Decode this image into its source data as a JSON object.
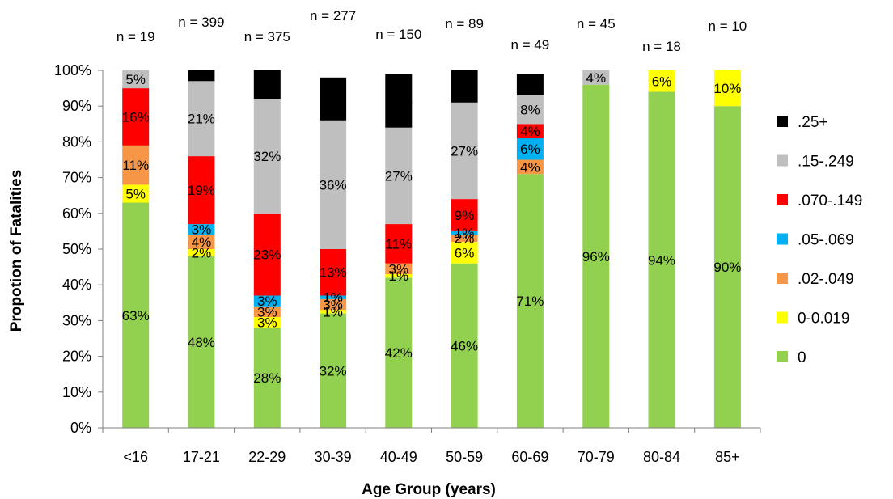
{
  "chart_data": {
    "type": "bar",
    "stacked": true,
    "title": "",
    "xlabel": "Age Group (years)",
    "ylabel": "Propotion of Fatalities",
    "ylim": [
      0,
      100
    ],
    "yticks": [
      "0%",
      "10%",
      "20%",
      "30%",
      "40%",
      "50%",
      "60%",
      "70%",
      "80%",
      "90%",
      "100%"
    ],
    "grid": false,
    "legend_position": "right",
    "categories": [
      "<16",
      "17-21",
      "22-29",
      "30-39",
      "40-49",
      "50-59",
      "60-69",
      "70-79",
      "80-84",
      "85+"
    ],
    "sample_sizes": [
      "n = 19",
      "n = 399",
      "n = 375",
      "n = 277",
      "n = 150",
      "n = 89",
      "n = 49",
      "n = 45",
      "n = 18",
      "n = 10"
    ],
    "series": [
      {
        "name": "0",
        "color": "#92D050",
        "values": [
          63,
          48,
          28,
          32,
          42,
          46,
          71,
          96,
          94,
          90
        ],
        "labels": [
          "63%",
          "48%",
          "28%",
          "32%",
          "42%",
          "46%",
          "71%",
          "96%",
          "94%",
          "90%"
        ]
      },
      {
        "name": "0-0.019",
        "color": "#FFFF00",
        "values": [
          5,
          2,
          3,
          1,
          1,
          6,
          0,
          0,
          6,
          10
        ],
        "labels": [
          "5%",
          "2%",
          "3%",
          "1%",
          "1%",
          "6%",
          "",
          "",
          "6%",
          "10%"
        ]
      },
      {
        "name": ".02-.049",
        "color": "#F79646",
        "values": [
          11,
          4,
          3,
          3,
          3,
          2,
          4,
          0,
          0,
          0
        ],
        "labels": [
          "11%",
          "4%",
          "3%",
          "3%",
          "3%",
          "2%",
          "4%",
          "",
          "",
          ""
        ]
      },
      {
        "name": ".05-.069",
        "color": "#00B0F0",
        "values": [
          0,
          3,
          3,
          1,
          0,
          1,
          6,
          0,
          0,
          0
        ],
        "labels": [
          "",
          "3%",
          "3%",
          "1%",
          "",
          "1%",
          "6%",
          "",
          "",
          ""
        ]
      },
      {
        "name": ".070-.149",
        "color": "#FF0000",
        "values": [
          16,
          19,
          23,
          13,
          11,
          9,
          4,
          0,
          0,
          0
        ],
        "labels": [
          "16%",
          "19%",
          "23%",
          "13%",
          "11%",
          "9%",
          "4%",
          "",
          "",
          ""
        ]
      },
      {
        "name": ".15-.249",
        "color": "#BFBFBF",
        "values": [
          5,
          21,
          32,
          36,
          27,
          27,
          8,
          4,
          0,
          0
        ],
        "labels": [
          "5%",
          "21%",
          "32%",
          "36%",
          "27%",
          "27%",
          "8%",
          "4%",
          "",
          ""
        ]
      },
      {
        "name": ".25+",
        "color": "#000000",
        "values": [
          0,
          3,
          8,
          12,
          15,
          9,
          6,
          0,
          0,
          0
        ],
        "labels": [
          "",
          "3%",
          "8%",
          "12%",
          "15%",
          "9%",
          "6%",
          "",
          "",
          ""
        ]
      }
    ]
  }
}
